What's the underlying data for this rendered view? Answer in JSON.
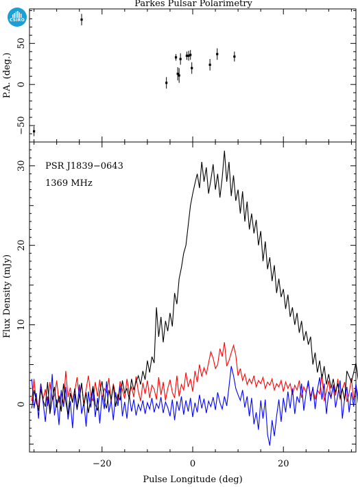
{
  "chart_data": [
    {
      "type": "scatter",
      "title": "Parkes Pulsar Polarimetry",
      "xlabel": "",
      "ylabel": "P.A. (deg.)",
      "xlim": [
        -36,
        36
      ],
      "ylim": [
        -70,
        92
      ],
      "yticks": [
        -50,
        0,
        50
      ],
      "x_minor_ticks": true,
      "series": [
        {
          "points": [
            {
              "x": -35,
              "y": -57,
              "err": 6
            },
            {
              "x": -24.5,
              "y": 79,
              "err": 7
            },
            {
              "x": -5.8,
              "y": 2,
              "err": 7
            },
            {
              "x": -3.7,
              "y": 33,
              "err": 4
            },
            {
              "x": -3.3,
              "y": 13,
              "err": 8
            },
            {
              "x": -3.0,
              "y": 11,
              "err": 9
            },
            {
              "x": -2.7,
              "y": 31,
              "err": 7
            },
            {
              "x": -1.3,
              "y": 35,
              "err": 5
            },
            {
              "x": -0.9,
              "y": 35,
              "err": 6
            },
            {
              "x": -0.5,
              "y": 36,
              "err": 6
            },
            {
              "x": -0.2,
              "y": 20,
              "err": 7
            },
            {
              "x": 3.8,
              "y": 24,
              "err": 7
            },
            {
              "x": 5.4,
              "y": 37,
              "err": 7
            },
            {
              "x": 9.2,
              "y": 34,
              "err": 6
            }
          ]
        }
      ]
    },
    {
      "type": "line",
      "xlabel": "Pulse Longitude (deg)",
      "ylabel": "Flux Density (mJy)",
      "xlim": [
        -36,
        36
      ],
      "ylim": [
        -6,
        33
      ],
      "xticks": [
        -20,
        0,
        20
      ],
      "yticks": [
        0,
        10,
        20,
        30
      ],
      "grid": false,
      "annotations": [
        "PSR J1839−0643",
        "1369 MHz"
      ],
      "series": [
        {
          "color": "#000000",
          "x_start": -35.5,
          "x_step": 0.5,
          "values": [
            -0.5,
            1.8,
            0.4,
            -0.8,
            1.9,
            0.5,
            -0.3,
            2.8,
            -1.2,
            0.6,
            2.2,
            -0.4,
            1.1,
            -0.9,
            2.6,
            0.3,
            -1.3,
            1.4,
            0.2,
            2.0,
            -0.6,
            0.9,
            2.7,
            -0.2,
            1.5,
            -1.1,
            0.7,
            2.3,
            0.0,
            -0.8,
            1.6,
            2.9,
            0.4,
            -0.5,
            1.8,
            0.6,
            2.4,
            -0.3,
            1.2,
            0.5,
            3.0,
            1.4,
            2.0,
            0.7,
            3.2,
            1.8,
            2.8,
            3.6,
            2.5,
            4.2,
            3.1,
            5.5,
            4.0,
            6.0,
            5.2,
            12.2,
            8.5,
            11.0,
            7.8,
            10.5,
            9.2,
            11.5,
            9.8,
            14.0,
            12.6,
            15.8,
            17.2,
            19.0,
            20.0,
            22.5,
            25.0,
            26.5,
            27.8,
            29.0,
            27.2,
            30.5,
            28.0,
            29.8,
            26.5,
            28.2,
            30.2,
            27.0,
            29.0,
            26.0,
            28.5,
            31.9,
            28.0,
            30.5,
            26.2,
            28.8,
            25.6,
            27.0,
            24.0,
            26.8,
            23.0,
            25.5,
            22.0,
            24.0,
            21.5,
            23.2,
            20.0,
            21.8,
            18.0,
            20.5,
            17.0,
            18.5,
            15.5,
            17.5,
            14.0,
            15.8,
            13.5,
            14.5,
            12.0,
            13.8,
            11.0,
            12.2,
            10.0,
            11.5,
            9.0,
            10.5,
            8.0,
            9.2,
            7.5,
            8.5,
            5.0,
            6.5,
            4.0,
            5.5,
            3.2,
            4.8,
            2.5,
            3.8,
            2.0,
            3.2,
            1.5,
            2.6,
            0.8,
            2.0,
            0.5,
            4.2,
            3.5,
            2.8,
            4.0,
            5.2,
            3.1,
            2.4,
            1.5,
            0.8,
            2.2,
            1.0,
            -0.5,
            0.8,
            1.8,
            0.5,
            -0.2,
            1.4,
            0.3,
            2.1,
            -0.8,
            0.9,
            1.6,
            -0.3,
            1.2,
            0.4
          ]
        },
        {
          "color": "#ff0000",
          "x_start": -35.5,
          "x_step": 0.5,
          "values": [
            0.4,
            3.2,
            0.1,
            -0.3,
            2.6,
            0.6,
            1.9,
            -0.2,
            2.8,
            0.5,
            1.1,
            3.0,
            0.2,
            1.5,
            -0.1,
            4.2,
            0.9,
            2.1,
            0.3,
            1.7,
            3.4,
            0.8,
            2.5,
            0.0,
            1.9,
            3.6,
            1.2,
            0.4,
            2.8,
            1.0,
            3.1,
            0.6,
            2.0,
            1.5,
            3.3,
            0.2,
            2.6,
            1.1,
            0.5,
            2.9,
            1.8,
            0.7,
            3.2,
            1.4,
            2.2,
            0.9,
            3.5,
            1.6,
            0.4,
            2.7,
            1.3,
            3.0,
            0.8,
            2.4,
            1.9,
            0.6,
            3.4,
            1.2,
            2.8,
            0.5,
            2.0,
            3.1,
            1.5,
            0.8,
            3.6,
            1.0,
            2.5,
            1.8,
            4.0,
            2.2,
            3.2,
            1.6,
            4.2,
            2.8,
            5.0,
            3.5,
            4.6,
            3.8,
            5.2,
            6.6,
            5.8,
            4.5,
            5.0,
            7.0,
            6.0,
            7.8,
            4.8,
            5.5,
            6.5,
            7.4,
            6.2,
            3.6,
            4.5,
            3.0,
            3.8,
            2.5,
            3.2,
            2.6,
            3.6,
            2.2,
            3.0,
            2.6,
            3.4,
            2.0,
            2.8,
            2.4,
            3.2,
            1.8,
            2.6,
            2.2,
            3.0,
            1.6,
            2.8,
            2.0,
            2.6,
            1.2,
            2.4,
            1.8,
            3.0,
            0.8,
            2.2,
            1.5,
            2.6,
            1.0,
            2.0,
            0.6,
            1.8,
            1.3,
            3.8,
            0.4,
            1.6,
            3.0,
            0.7,
            2.5,
            1.1,
            3.2,
            0.6,
            1.9,
            2.8,
            0.3,
            1.4,
            3.3,
            0.5,
            2.2,
            1.0,
            3.4,
            0.2,
            2.7,
            1.2,
            0.7,
            2.9,
            0.4,
            1.6,
            2.4,
            0.9,
            3.2,
            0.3,
            1.4
          ]
        },
        {
          "color": "#0000ff",
          "x_start": -35.5,
          "x_step": 0.5,
          "values": [
            3.2,
            -0.5,
            1.4,
            -1.8,
            2.6,
            0.3,
            -2.2,
            1.0,
            -0.8,
            3.8,
            -1.4,
            0.6,
            -2.6,
            1.8,
            -0.3,
            2.2,
            -1.9,
            0.4,
            -3.0,
            1.3,
            -0.7,
            2.5,
            -1.2,
            0.2,
            -2.8,
            1.6,
            -0.4,
            2.0,
            -1.6,
            0.8,
            -2.4,
            1.1,
            -0.6,
            2.9,
            -1.0,
            0.5,
            -2.0,
            1.5,
            -0.2,
            2.4,
            -1.5,
            0.3,
            -1.8,
            1.2,
            -0.9,
            0.6,
            -1.4,
            0.0,
            -0.8,
            0.5,
            -1.2,
            0.2,
            -0.6,
            0.8,
            -1.0,
            0.1,
            -0.5,
            0.9,
            -1.1,
            0.3,
            -0.4,
            -1.5,
            0.6,
            -2.0,
            0.4,
            -0.8,
            1.0,
            -1.3,
            0.5,
            -0.9,
            0.8,
            -1.6,
            0.2,
            -1.0,
            1.2,
            -0.5,
            0.7,
            -1.1,
            0.4,
            -0.3,
            0.9,
            -0.7,
            1.5,
            0.2,
            -0.6,
            1.0,
            -0.2,
            2.2,
            4.8,
            3.6,
            2.0,
            1.2,
            0.5,
            1.8,
            -0.4,
            1.0,
            -1.5,
            0.8,
            -2.5,
            -1.0,
            -3.2,
            0.5,
            -1.8,
            0.6,
            -3.8,
            -5.2,
            -2.0,
            -4.0,
            -1.5,
            0.6,
            -2.2,
            0.8,
            -1.0,
            1.6,
            -0.5,
            2.0,
            -1.2,
            1.0,
            0.2,
            2.6,
            -0.8,
            1.4,
            3.0,
            0.4,
            2.2,
            -0.6,
            1.8,
            3.4,
            0.6,
            2.6,
            -1.2,
            1.6,
            0.8,
            2.4,
            -0.4,
            1.2,
            3.0,
            -1.8,
            0.7,
            2.2,
            -1.0,
            1.5,
            -0.3,
            2.6,
            0.2,
            -1.4,
            1.8,
            -0.6,
            2.4,
            0.4,
            -1.2,
            1.6,
            0.0,
            -0.5,
            2.1,
            -0.8
          ]
        }
      ]
    }
  ],
  "logo": {
    "text": "CSIRO",
    "color": "#1a9fd6"
  }
}
